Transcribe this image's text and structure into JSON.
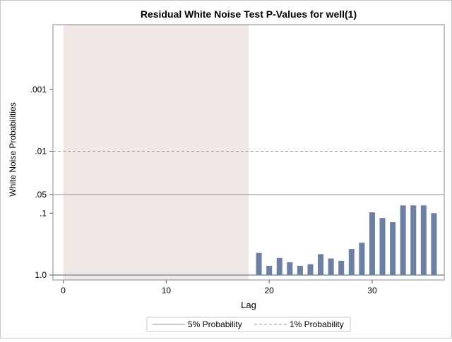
{
  "chart_data": {
    "type": "bar",
    "title": "Residual White Noise Test P-Values for well(1)",
    "xlabel": "Lag",
    "ylabel": "White Noise Probabilities",
    "y_scale": "log, reversed (1.0 at bottom)",
    "xlim": [
      -1,
      37
    ],
    "ylim": [
      1.0,
      0.0001
    ],
    "x_ticks": [
      0,
      10,
      20,
      30
    ],
    "x_tick_labels": [
      "0",
      "10",
      "20",
      "30"
    ],
    "y_ticks": [
      1.0,
      0.1,
      0.05,
      0.01,
      0.001
    ],
    "y_tick_labels": [
      "1.0",
      ".1",
      ".05",
      ".01",
      ".001"
    ],
    "shaded_region": {
      "x_start": 0,
      "x_end": 18,
      "color": "#f1e8e5"
    },
    "reference_lines": [
      {
        "name": "5% Probability",
        "value": 0.05,
        "style": "solid",
        "color": "#8f959e"
      },
      {
        "name": "1% Probability",
        "value": 0.01,
        "style": "dashed",
        "color": "#9b9b9b"
      }
    ],
    "bar_color": "#6b80a3",
    "series": [
      {
        "name": "White Noise Probability",
        "x": [
          1,
          2,
          3,
          4,
          5,
          6,
          7,
          8,
          9,
          10,
          11,
          12,
          13,
          14,
          15,
          16,
          17,
          18,
          19,
          20,
          21,
          22,
          23,
          24,
          25,
          26,
          27,
          28,
          29,
          30,
          31,
          32,
          33,
          34,
          35,
          36
        ],
        "values": [
          1.0,
          1.0,
          1.0,
          1.0,
          1.0,
          1.0,
          1.0,
          1.0,
          1.0,
          1.0,
          1.0,
          1.0,
          1.0,
          1.0,
          1.0,
          1.0,
          1.0,
          1.0,
          0.44,
          0.71,
          0.53,
          0.62,
          0.71,
          0.67,
          0.46,
          0.54,
          0.59,
          0.38,
          0.3,
          0.097,
          0.12,
          0.14,
          0.075,
          0.075,
          0.075,
          0.1
        ]
      }
    ],
    "legend": {
      "position": "bottom-center",
      "entries": [
        "5% Probability",
        "1% Probability"
      ]
    }
  }
}
